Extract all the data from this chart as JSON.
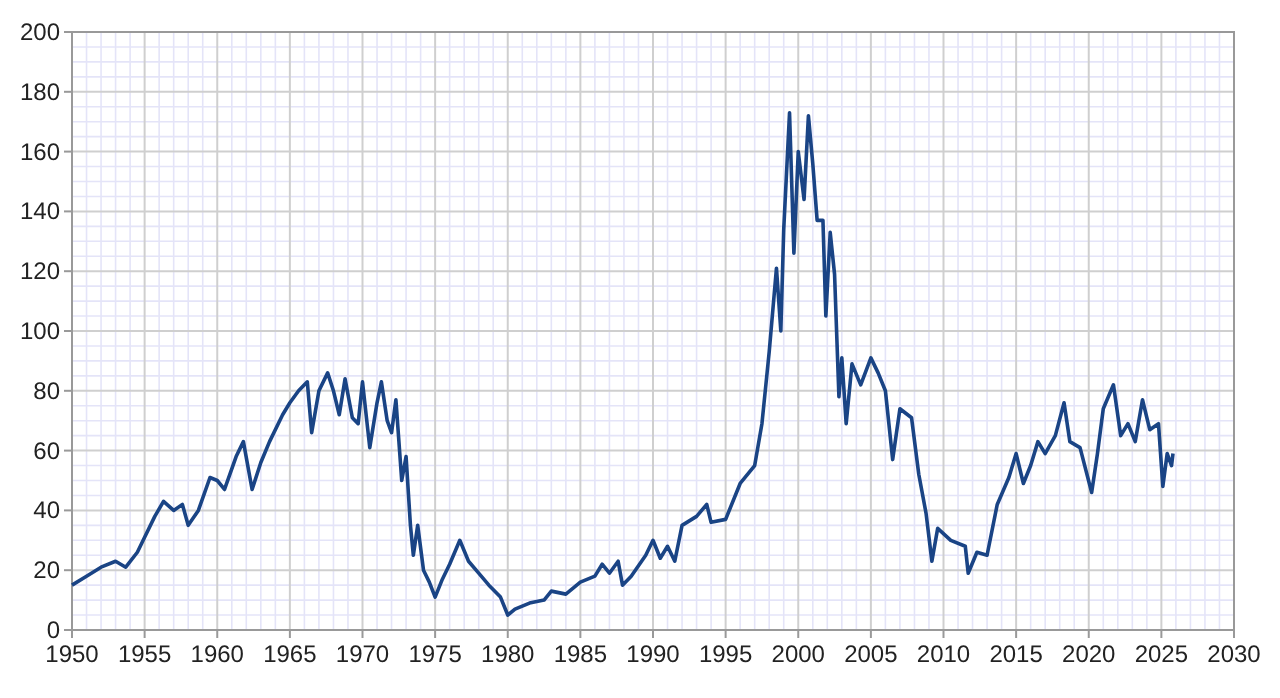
{
  "chart_data": {
    "type": "line",
    "xlim": [
      1950,
      2030
    ],
    "ylim": [
      0,
      200
    ],
    "xticks": [
      1950,
      1955,
      1960,
      1965,
      1970,
      1975,
      1980,
      1985,
      1990,
      1995,
      2000,
      2005,
      2010,
      2015,
      2020,
      2025,
      2030
    ],
    "yticks": [
      0,
      20,
      40,
      60,
      80,
      100,
      120,
      140,
      160,
      180,
      200
    ],
    "grid": true,
    "marker": "none",
    "line_style": "solid",
    "series": [
      {
        "color": "#1a4485",
        "x": [
          1950,
          1951,
          1952,
          1953,
          1953.7,
          1954.5,
          1955,
          1955.7,
          1956.3,
          1957,
          1957.6,
          1958,
          1958.7,
          1959.5,
          1960,
          1960.5,
          1961.3,
          1961.8,
          1962.4,
          1963,
          1963.6,
          1964.5,
          1965,
          1965.6,
          1966.2,
          1966.5,
          1967,
          1967.6,
          1968,
          1968.4,
          1968.8,
          1969.3,
          1969.7,
          1970,
          1970.5,
          1971,
          1971.3,
          1971.7,
          1972,
          1972.3,
          1972.7,
          1973,
          1973.3,
          1973.5,
          1973.8,
          1974.2,
          1974.6,
          1975,
          1975.5,
          1976,
          1976.7,
          1977.3,
          1978,
          1978.7,
          1979.5,
          1980,
          1980.5,
          1981.5,
          1982.5,
          1983,
          1984,
          1985,
          1986,
          1986.5,
          1987,
          1987.6,
          1987.9,
          1988.5,
          1989.5,
          1990,
          1990.5,
          1991,
          1991.5,
          1992,
          1993,
          1993.7,
          1994,
          1995,
          1996,
          1997,
          1997.5,
          1998,
          1998.5,
          1998.8,
          1999,
          1999.4,
          1999.7,
          2000,
          2000.4,
          2000.7,
          2001,
          2001.3,
          2001.7,
          2001.9,
          2002.2,
          2002.5,
          2002.8,
          2003,
          2003.3,
          2003.7,
          2004.3,
          2005,
          2005.5,
          2006,
          2006.5,
          2007,
          2007.8,
          2008.3,
          2008.8,
          2009.2,
          2009.6,
          2010.5,
          2011.5,
          2011.7,
          2012.3,
          2013,
          2013.7,
          2014.5,
          2015,
          2015.5,
          2016,
          2016.5,
          2017,
          2017.7,
          2018.3,
          2018.7,
          2019.4,
          2020.2,
          2020.6,
          2021,
          2021.7,
          2022.2,
          2022.7,
          2023.2,
          2023.7,
          2024.2,
          2024.8,
          2025.1,
          2025.4,
          2025.7,
          2025.8
        ],
        "values": [
          15,
          18,
          21,
          23,
          21,
          26,
          31,
          38,
          43,
          40,
          42,
          35,
          40,
          51,
          50,
          47,
          58,
          63,
          47,
          56,
          63,
          72,
          76,
          80,
          83,
          66,
          80,
          86,
          80,
          72,
          84,
          71,
          69,
          83,
          61,
          76,
          83,
          70,
          66,
          77,
          50,
          58,
          35,
          25,
          35,
          20,
          16,
          11,
          17,
          22,
          30,
          23,
          19,
          15,
          11,
          5,
          7,
          9,
          10,
          13,
          12,
          16,
          18,
          22,
          19,
          23,
          15,
          18,
          25,
          30,
          24,
          28,
          23,
          35,
          38,
          42,
          36,
          37,
          49,
          55,
          69,
          93,
          121,
          100,
          134,
          173,
          126,
          160,
          144,
          172,
          156,
          137,
          137,
          105,
          133,
          119,
          78,
          91,
          69,
          89,
          82,
          91,
          86,
          80,
          57,
          74,
          71,
          52,
          39,
          23,
          34,
          30,
          28,
          19,
          26,
          25,
          42,
          51,
          59,
          49,
          55,
          63,
          59,
          65,
          76,
          63,
          61,
          46,
          59,
          74,
          82,
          65,
          69,
          63,
          77,
          67,
          69,
          48,
          59,
          55,
          59
        ]
      }
    ]
  }
}
